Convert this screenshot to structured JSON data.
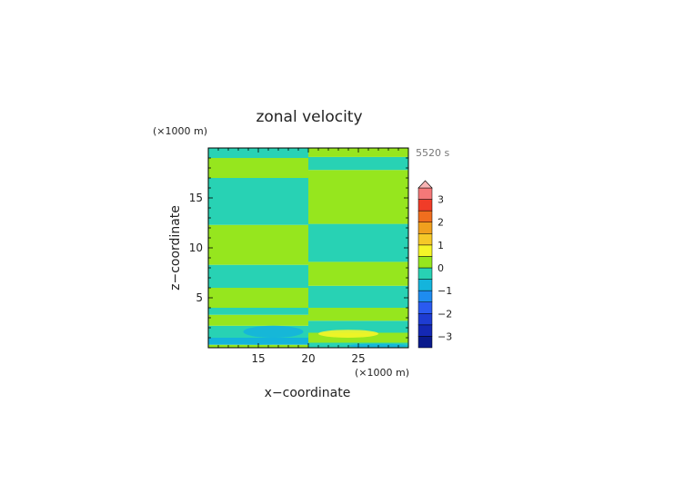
{
  "chart_data": {
    "type": "heatmap",
    "title": "zonal velocity",
    "time_label": "5520 s",
    "xlabel": "x−coordinate",
    "ylabel": "z−coordinate",
    "x_unit": "(×1000 m)",
    "y_unit": "(×1000 m)",
    "xlim": [
      10,
      30
    ],
    "ylim": [
      0,
      20
    ],
    "x_ticks": [
      {
        "value": 15,
        "label": "15"
      },
      {
        "value": 20,
        "label": "20"
      },
      {
        "value": 25,
        "label": "25"
      }
    ],
    "y_ticks": [
      {
        "value": 5,
        "label": "5"
      },
      {
        "value": 10,
        "label": "10"
      },
      {
        "value": 15,
        "label": "15"
      }
    ],
    "colorbar": {
      "levels": [
        -3.5,
        -3,
        -2.5,
        -2,
        -1.5,
        -1,
        -0.5,
        0,
        0.5,
        1,
        1.5,
        2,
        2.5,
        3,
        3.5
      ],
      "colors": [
        "#0a1a8c",
        "#1428b4",
        "#1e3cd2",
        "#2a5af0",
        "#1e8cf0",
        "#14b4dc",
        "#28d2b4",
        "#96e61e",
        "#f5f528",
        "#f5c828",
        "#f0a01e",
        "#f06e1e",
        "#f03c28",
        "#f57878"
      ],
      "over_color": "#f8b4b4",
      "tick_labels": [
        {
          "value": 3,
          "label": "3"
        },
        {
          "value": 2,
          "label": "2"
        },
        {
          "value": 1,
          "label": "1"
        },
        {
          "value": 0,
          "label": "0"
        },
        {
          "value": -1,
          "label": "−1"
        },
        {
          "value": -2,
          "label": "−2"
        },
        {
          "value": -3,
          "label": "−3"
        }
      ]
    },
    "bands_left": [
      {
        "z0": 0.0,
        "z1": 0.3,
        "level": 0.25
      },
      {
        "z0": 0.3,
        "z1": 1.0,
        "level": -0.75
      },
      {
        "z0": 1.0,
        "z1": 2.2,
        "level": -0.25
      },
      {
        "z0": 2.2,
        "z1": 3.3,
        "level": 0.25
      },
      {
        "z0": 3.3,
        "z1": 4.0,
        "level": -0.25
      },
      {
        "z0": 4.0,
        "z1": 6.0,
        "level": 0.25
      },
      {
        "z0": 6.0,
        "z1": 8.3,
        "level": -0.25
      },
      {
        "z0": 8.3,
        "z1": 12.3,
        "level": 0.25
      },
      {
        "z0": 12.3,
        "z1": 17.0,
        "level": -0.25
      },
      {
        "z0": 17.0,
        "z1": 19.0,
        "level": 0.25
      },
      {
        "z0": 19.0,
        "z1": 20.0,
        "level": -0.25
      }
    ],
    "bands_right": [
      {
        "z0": 0.0,
        "z1": 0.5,
        "level": -0.25
      },
      {
        "z0": 0.5,
        "z1": 1.5,
        "level": 0.25
      },
      {
        "z0": 1.5,
        "z1": 2.7,
        "level": -0.25
      },
      {
        "z0": 2.7,
        "z1": 4.0,
        "level": 0.25
      },
      {
        "z0": 4.0,
        "z1": 6.2,
        "level": -0.25
      },
      {
        "z0": 6.2,
        "z1": 8.6,
        "level": 0.25
      },
      {
        "z0": 8.6,
        "z1": 12.4,
        "level": -0.25
      },
      {
        "z0": 12.4,
        "z1": 17.8,
        "level": 0.25
      },
      {
        "z0": 17.8,
        "z1": 19.1,
        "level": -0.25
      },
      {
        "z0": 19.1,
        "z1": 20.0,
        "level": 0.25
      }
    ],
    "features": [
      {
        "x0": 10,
        "x1": 20,
        "z0": 0.3,
        "z1": 1.0,
        "level": -0.75
      },
      {
        "x0": 13.5,
        "x1": 19.5,
        "z0": 1.0,
        "z1": 2.2,
        "level": -0.75
      },
      {
        "x0": 21,
        "x1": 27,
        "z0": 1.0,
        "z1": 1.8,
        "level": 0.75
      },
      {
        "x0": 24,
        "x1": 30,
        "z0": 0.0,
        "z1": 0.4,
        "level": -0.75
      }
    ]
  }
}
